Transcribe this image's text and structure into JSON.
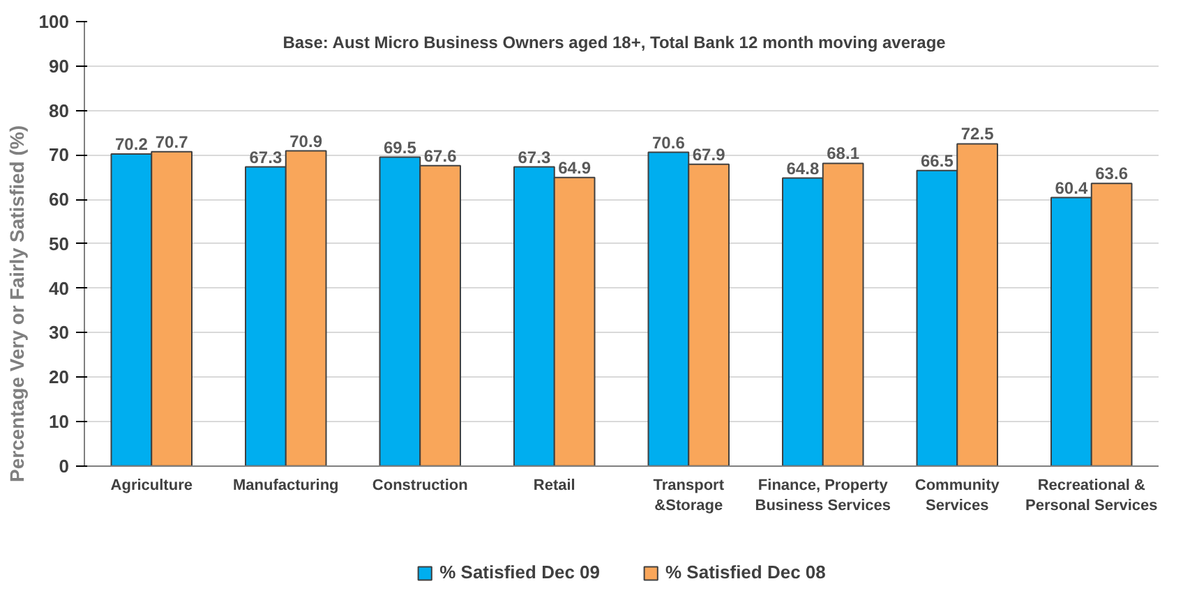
{
  "chart_data": {
    "type": "bar",
    "ylabel": "Percentage Very or Fairly Satisfied (%)",
    "annotations": [
      "Base: Aust  Micro Business Owners aged 18+, Total Bank   12 month moving average"
    ],
    "categories": [
      "Agriculture",
      "Manufacturing",
      "Construction",
      "Retail",
      "Transport\n&Storage",
      "Finance, Property\nBusiness Services",
      "Community\nServices",
      "Recreational &\nPersonal Services"
    ],
    "series": [
      {
        "name": "% Satisfied Dec 09",
        "color": "#00aeef",
        "values": [
          70.2,
          67.3,
          69.5,
          67.3,
          70.6,
          64.8,
          66.5,
          60.4
        ]
      },
      {
        "name": "% Satisfied Dec 08",
        "color": "#f9a65a",
        "values": [
          70.7,
          70.9,
          67.6,
          64.9,
          67.9,
          68.1,
          72.5,
          63.6
        ]
      }
    ],
    "ylim": [
      0,
      100
    ],
    "yticks": [
      0,
      10,
      20,
      30,
      40,
      50,
      60,
      70,
      80,
      90,
      100
    ],
    "grid": "y",
    "legend": "bottom",
    "data_labels": true
  }
}
